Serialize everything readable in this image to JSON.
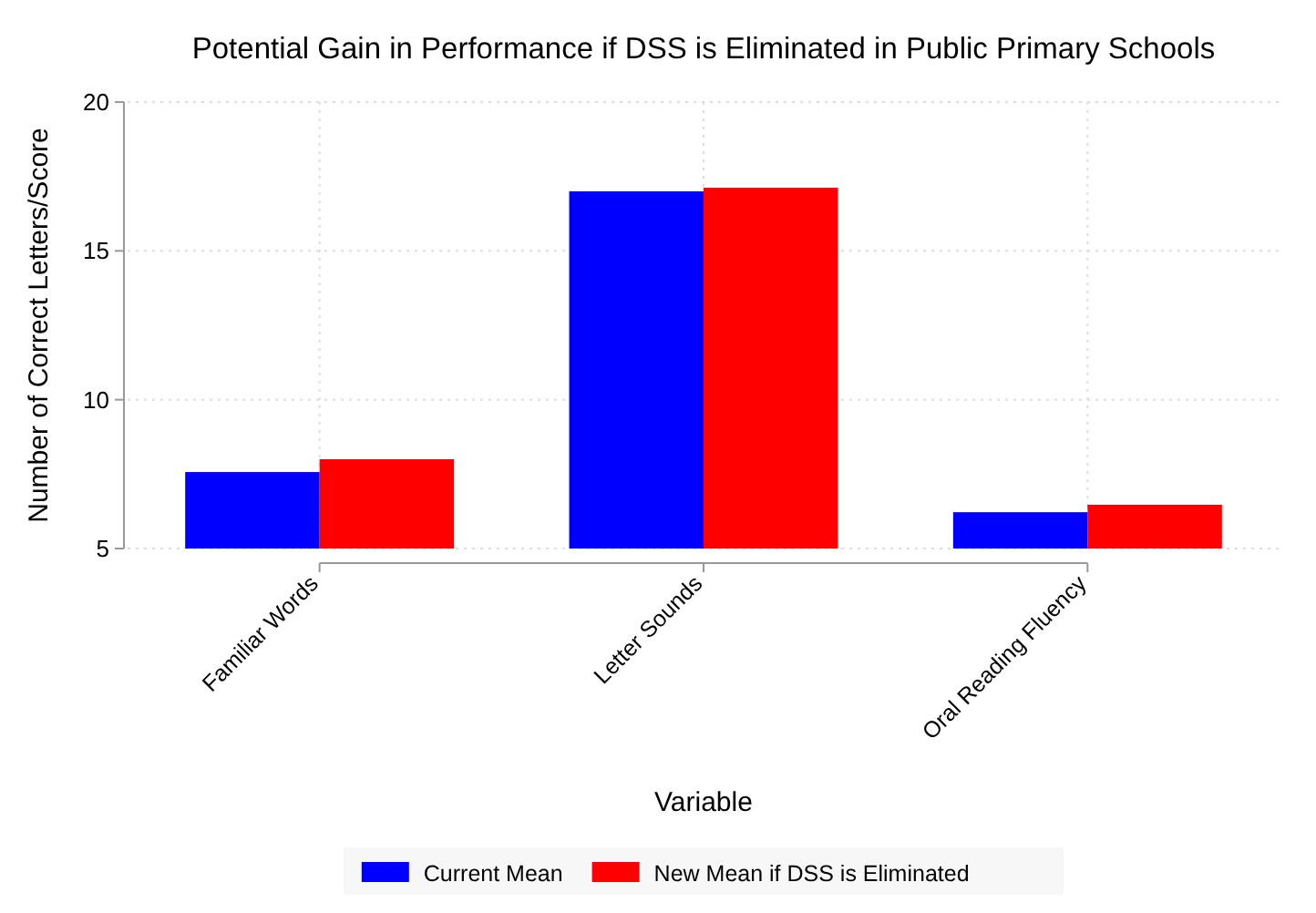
{
  "chart_data": {
    "type": "bar",
    "title": "Potential Gain in Performance if DSS is Eliminated in Public Primary Schools",
    "xlabel": "Variable",
    "ylabel": "Number of Correct Letters/Score",
    "categories": [
      "Familiar Words",
      "Letter Sounds",
      "Oral Reading Fluency"
    ],
    "series": [
      {
        "name": "Current Mean",
        "color": "#0000ff",
        "values": [
          7.57,
          17.0,
          6.22
        ]
      },
      {
        "name": "New Mean if DSS is Eliminated",
        "color": "#ff0000",
        "values": [
          8.0,
          17.12,
          6.47
        ]
      }
    ],
    "ylim": [
      5,
      20
    ],
    "yticks": [
      5,
      10,
      15,
      20
    ],
    "grid": true,
    "legend": "bottom"
  }
}
